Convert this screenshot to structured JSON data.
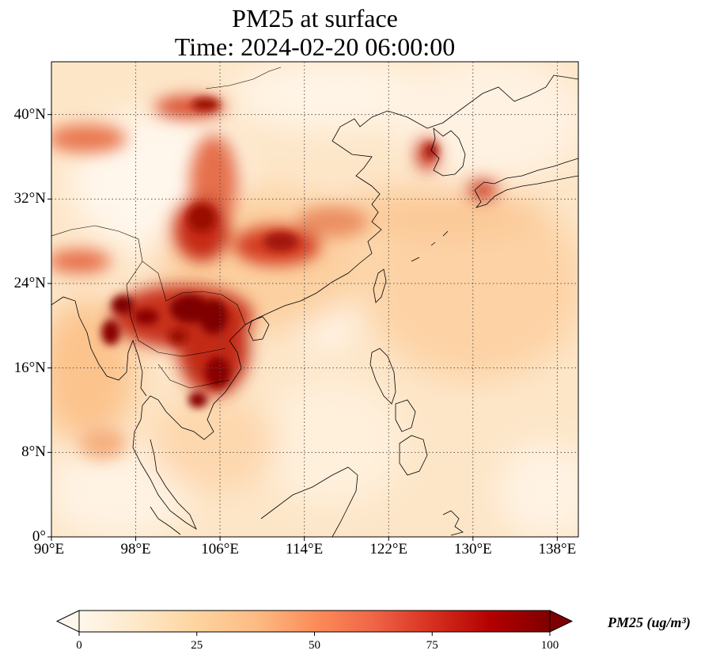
{
  "title": {
    "line1": "PM25 at surface",
    "line2": "Time: 2024-02-20 06:00:00"
  },
  "map": {
    "lon_range": [
      90,
      140
    ],
    "lat_range": [
      0,
      45
    ],
    "gridlines": "dotted",
    "colormap": "OrRd",
    "colors": {
      "low": "#fff7ec",
      "mid_low": "#fdd49e",
      "mid": "#fc8d59",
      "high": "#d7301f",
      "max": "#7f0000",
      "coastline": "#000000",
      "grid": "#555555"
    },
    "lat_ticks": [
      {
        "value": 0,
        "label": "0°"
      },
      {
        "value": 8,
        "label": "8°N"
      },
      {
        "value": 16,
        "label": "16°N"
      },
      {
        "value": 24,
        "label": "24°N"
      },
      {
        "value": 32,
        "label": "32°N"
      },
      {
        "value": 40,
        "label": "40°N"
      }
    ],
    "lon_ticks": [
      {
        "value": 90,
        "label": "90°E"
      },
      {
        "value": 98,
        "label": "98°E"
      },
      {
        "value": 106,
        "label": "106°E"
      },
      {
        "value": 114,
        "label": "114°E"
      },
      {
        "value": 122,
        "label": "122°E"
      },
      {
        "value": 130,
        "label": "130°E"
      },
      {
        "value": 138,
        "label": "138°E"
      }
    ]
  },
  "colorbar": {
    "min": 0,
    "max": 100,
    "extend": "both",
    "ticks": [
      {
        "value": 0,
        "label": "0"
      },
      {
        "value": 25,
        "label": "25"
      },
      {
        "value": 50,
        "label": "50"
      },
      {
        "value": 75,
        "label": "75"
      },
      {
        "value": 100,
        "label": "100"
      }
    ],
    "label": "PM25 (ug/m³)"
  }
}
